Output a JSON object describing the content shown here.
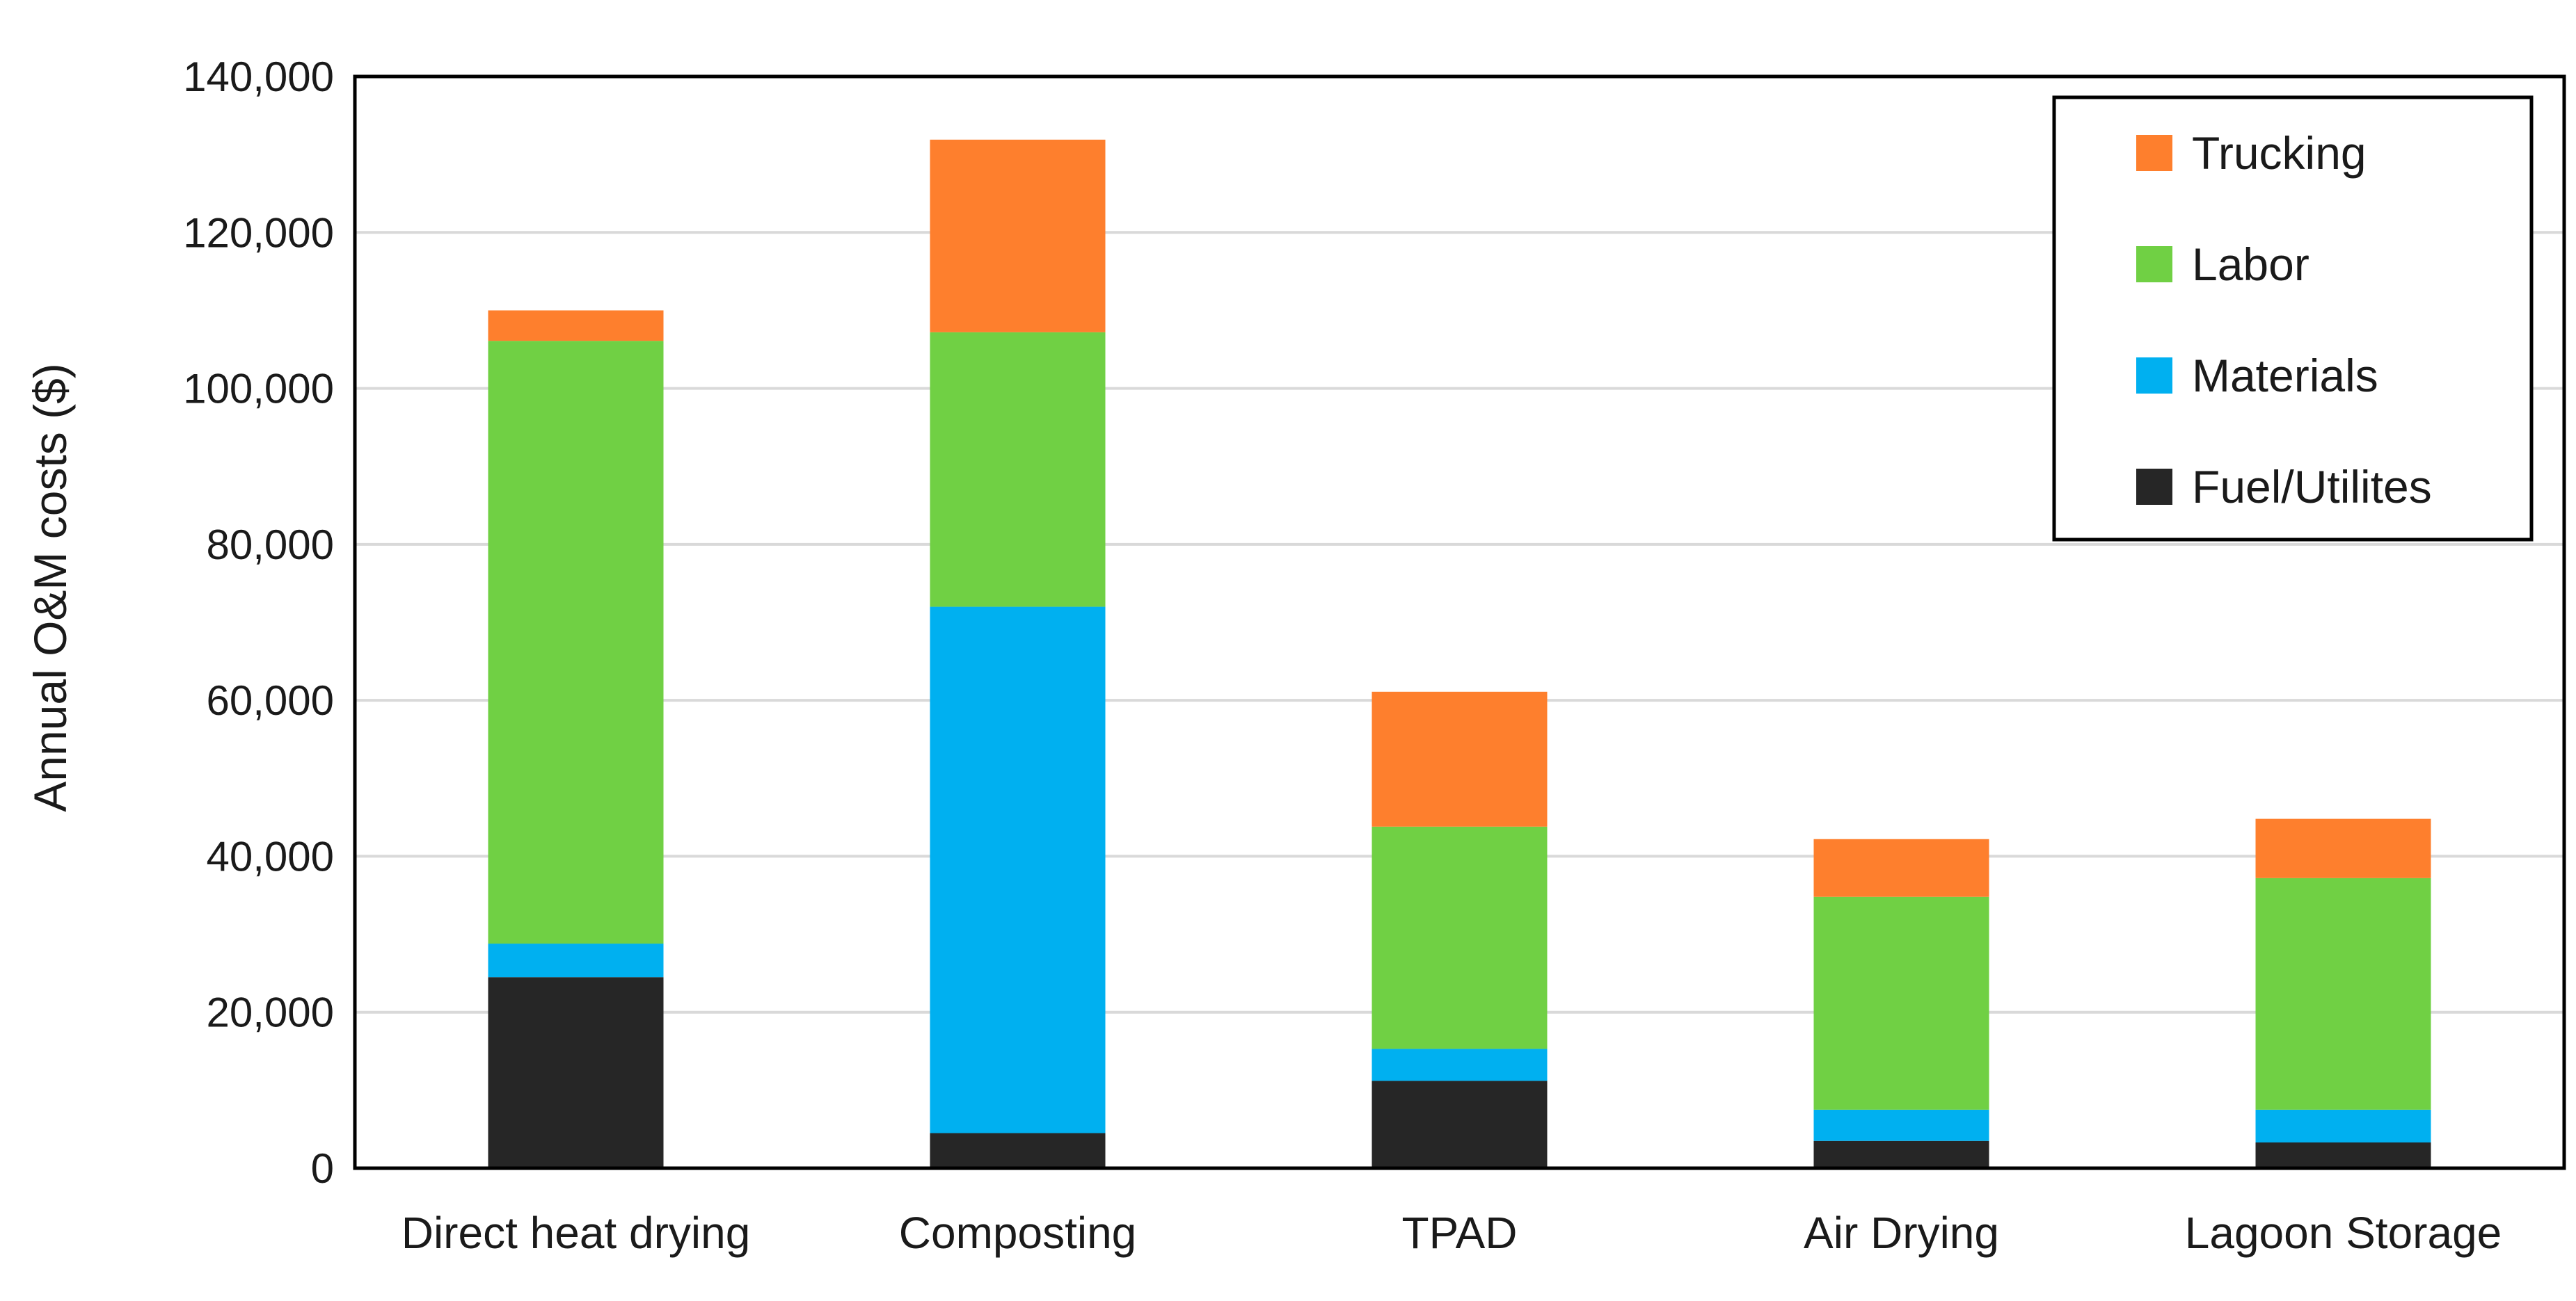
{
  "chart_data": {
    "type": "bar",
    "stacked": true,
    "title": "",
    "xlabel": "",
    "ylabel": "Annual O&M costs ($)",
    "ylim": [
      0,
      140000
    ],
    "yticks": [
      0,
      20000,
      40000,
      60000,
      80000,
      100000,
      120000,
      140000
    ],
    "ytick_labels": [
      "0",
      "20,000",
      "40,000",
      "60,000",
      "80,000",
      "100,000",
      "120,000",
      "140,000"
    ],
    "grid": true,
    "legend_position": "top-right",
    "categories": [
      "Direct heat drying",
      "Composting",
      "TPAD",
      "Air Drying",
      "Lagoon Storage"
    ],
    "series": [
      {
        "name": "Fuel/Utilites",
        "color": "#262626",
        "values": [
          24500,
          4500,
          11200,
          3500,
          3300
        ]
      },
      {
        "name": "Materials",
        "color": "#00b0f0",
        "values": [
          4300,
          67500,
          4100,
          4000,
          4200
        ]
      },
      {
        "name": "Labor",
        "color": "#70d044",
        "values": [
          77300,
          35200,
          28500,
          27300,
          29700
        ]
      },
      {
        "name": "Trucking",
        "color": "#fe7f2d",
        "values": [
          3900,
          24700,
          17300,
          7400,
          7600
        ]
      }
    ],
    "legend_order": [
      "Trucking",
      "Labor",
      "Materials",
      "Fuel/Utilites"
    ]
  },
  "colors": {
    "axis": "#000000",
    "grid": "#d9d9d9",
    "background": "#ffffff"
  }
}
